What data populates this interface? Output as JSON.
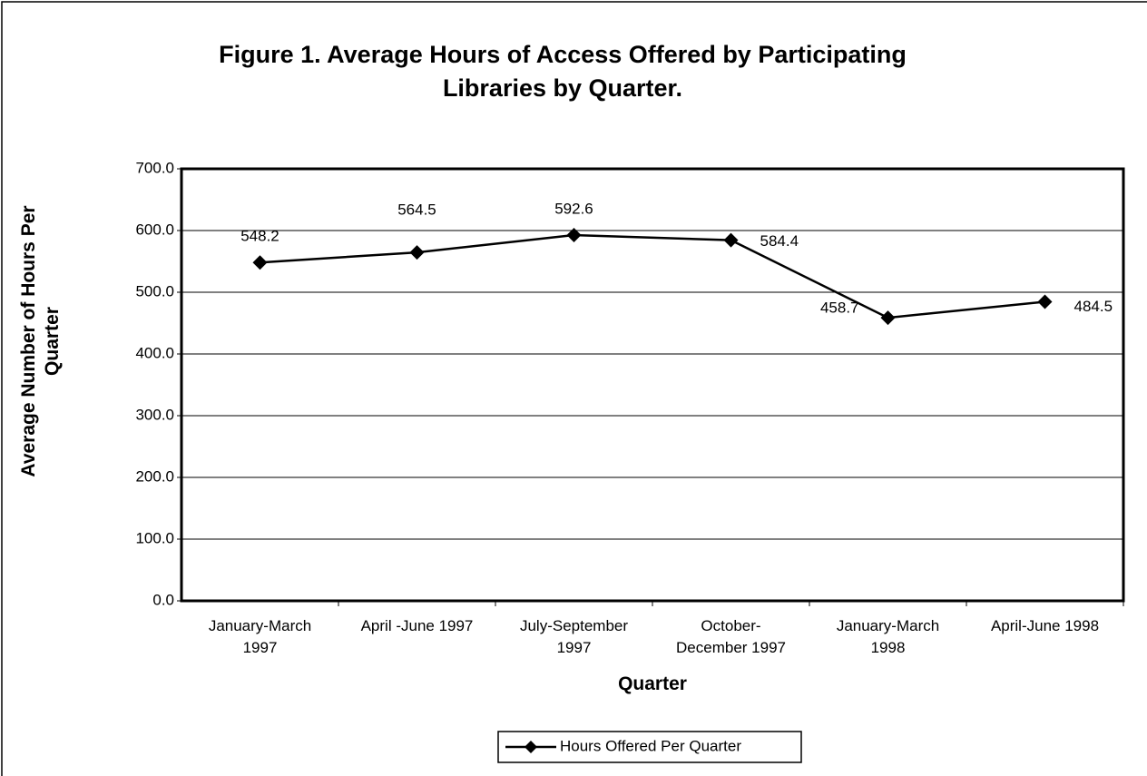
{
  "chart_data": {
    "type": "line",
    "title": "Figure 1.  Average Hours of Access Offered by Participating\nLibraries by Quarter.",
    "x_label": "Quarter",
    "y_label": "Average Number of Hours Per\nQuarter",
    "categories": [
      "January-March\n1997",
      "April -June 1997",
      "July-September\n1997",
      "October-\nDecember 1997",
      "January-March\n1998",
      "April-June 1998"
    ],
    "series": [
      {
        "name": "Hours Offered Per Quarter",
        "color": "#000000",
        "values": [
          548.2,
          564.5,
          592.6,
          584.4,
          458.7,
          484.5
        ]
      }
    ],
    "ylim": [
      0,
      700
    ],
    "yticks": [
      {
        "value": 0,
        "label": "0.0"
      },
      {
        "value": 100,
        "label": "100.0"
      },
      {
        "value": 200,
        "label": "200.0"
      },
      {
        "value": 300,
        "label": "300.0"
      },
      {
        "value": 400,
        "label": "400.0"
      },
      {
        "value": 500,
        "label": "500.0"
      },
      {
        "value": 600,
        "label": "600.0"
      },
      {
        "value": 700,
        "label": "700.0"
      }
    ],
    "grid": true,
    "legend": "bottom"
  }
}
